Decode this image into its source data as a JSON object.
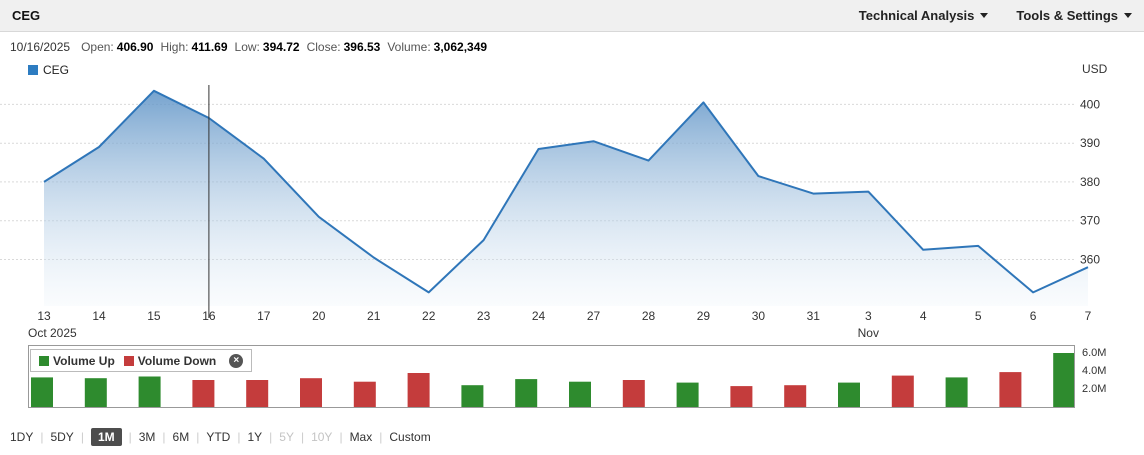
{
  "header": {
    "symbol": "CEG",
    "menus": [
      {
        "label": "Technical Analysis"
      },
      {
        "label": "Tools & Settings"
      }
    ]
  },
  "quote_bar": {
    "date": "10/16/2025",
    "fields": [
      {
        "label": "Open:",
        "value": "406.90"
      },
      {
        "label": "High:",
        "value": "411.69"
      },
      {
        "label": "Low:",
        "value": "394.72"
      },
      {
        "label": "Close:",
        "value": "396.53"
      },
      {
        "label": "Volume:",
        "value": "3,062,349"
      }
    ]
  },
  "price_pane": {
    "legend_label": "CEG",
    "legend_color": "#2d7cc1",
    "currency_label": "USD"
  },
  "chart_data": [
    {
      "type": "area",
      "title": "CEG daily price",
      "x": [
        "13",
        "14",
        "15",
        "16",
        "17",
        "20",
        "21",
        "22",
        "23",
        "24",
        "27",
        "28",
        "29",
        "30",
        "31",
        "3",
        "4",
        "5",
        "6",
        "7"
      ],
      "x_group_labels": [
        {
          "label": "Oct 2025",
          "index": 0
        },
        {
          "label": "Nov",
          "index": 15
        }
      ],
      "values": [
        380,
        389,
        403.5,
        396.5,
        386,
        371,
        360.5,
        351.5,
        365,
        388.5,
        390.5,
        385.5,
        400.5,
        381.5,
        377,
        377.5,
        362.5,
        363.5,
        351.5,
        358
      ],
      "y_ticks": [
        400,
        390,
        380,
        370,
        360
      ],
      "ylim": [
        348,
        405
      ],
      "grid": true,
      "legend_position": "top-left",
      "line_color": "#2f76b9",
      "fill_top_color": "#5e93c6",
      "fill_bottom_color": "#eaf2f9",
      "crosshair_index": 3
    },
    {
      "type": "bar",
      "title": "Volume",
      "unit": "M",
      "x": [
        "13",
        "14",
        "15",
        "16",
        "17",
        "20",
        "21",
        "22",
        "23",
        "24",
        "27",
        "28",
        "29",
        "30",
        "31",
        "3",
        "4",
        "5",
        "6",
        "7"
      ],
      "values": [
        3.4,
        3.3,
        3.5,
        3.1,
        3.1,
        3.3,
        2.9,
        3.9,
        2.5,
        3.2,
        2.9,
        3.1,
        2.8,
        2.4,
        2.5,
        2.8,
        3.6,
        3.4,
        4.0,
        6.2
      ],
      "directions": [
        "up",
        "up",
        "up",
        "down",
        "down",
        "down",
        "down",
        "down",
        "up",
        "up",
        "up",
        "down",
        "up",
        "down",
        "down",
        "up",
        "down",
        "up",
        "down",
        "up"
      ],
      "y_ticks": [
        "6.0M",
        "4.0M",
        "2.0M"
      ],
      "y_tick_values": [
        6,
        4,
        2
      ],
      "ylim": [
        0,
        7
      ],
      "up_color": "#2e8b2e",
      "down_color": "#c43c3c",
      "legend": [
        {
          "label": "Volume Up",
          "color": "#2e8b2e"
        },
        {
          "label": "Volume Down",
          "color": "#c43c3c"
        }
      ]
    }
  ],
  "range_selector": {
    "options": [
      {
        "label": "1DY",
        "state": "normal"
      },
      {
        "label": "5DY",
        "state": "normal"
      },
      {
        "label": "1M",
        "state": "selected"
      },
      {
        "label": "3M",
        "state": "normal"
      },
      {
        "label": "6M",
        "state": "normal"
      },
      {
        "label": "YTD",
        "state": "normal"
      },
      {
        "label": "1Y",
        "state": "normal"
      },
      {
        "label": "5Y",
        "state": "disabled"
      },
      {
        "label": "10Y",
        "state": "disabled"
      },
      {
        "label": "Max",
        "state": "normal"
      },
      {
        "label": "Custom",
        "state": "normal"
      }
    ]
  }
}
